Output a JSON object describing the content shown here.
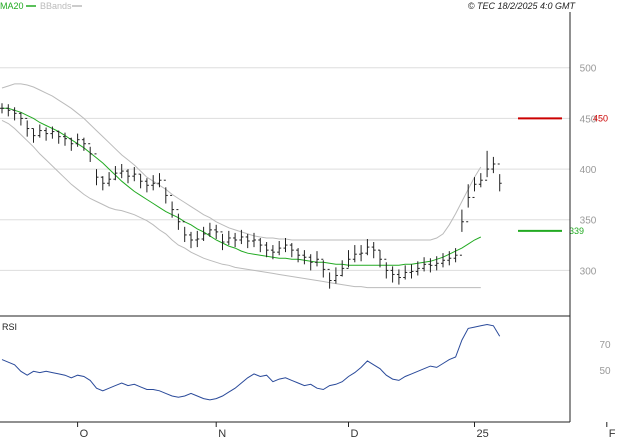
{
  "legend": {
    "ma_label": "MA20",
    "bbands_label": "BBands",
    "ma_color": "#22aa22",
    "bbands_color": "#bbbbbb"
  },
  "copyright": "© TEC 18/2/2025 4:0 GMT",
  "rsi_label": "RSI",
  "colors": {
    "resistance": "#cc0000",
    "support": "#22aa22",
    "bars": "#222222",
    "rsi": "#2a4a9a",
    "grid": "#dddddd"
  },
  "chart_data": [
    {
      "type": "ohlc",
      "title": "",
      "x_ticks": [
        "O",
        "N",
        "D",
        "25",
        "F"
      ],
      "x_tick_index": [
        12,
        34,
        55,
        75,
        96
      ],
      "y_ticks": [
        "300",
        "350",
        "400",
        "450",
        "500"
      ],
      "y_tick_values": [
        300,
        350,
        400,
        450,
        500
      ],
      "ylim": [
        255,
        555
      ],
      "grid": true,
      "series": [
        {
          "name": "MA20",
          "values": [
            460,
            460,
            458,
            456,
            453,
            450,
            446,
            443,
            440,
            437,
            433,
            429,
            425,
            421,
            416,
            411,
            406,
            400,
            394,
            388,
            383,
            378,
            374,
            370,
            366,
            362,
            358,
            355,
            352,
            348,
            345,
            341,
            338,
            334,
            330,
            327,
            324,
            322,
            319,
            317,
            316,
            315,
            314,
            313,
            312,
            312,
            311,
            311,
            310,
            309,
            308,
            308,
            307,
            306,
            306,
            305,
            305,
            305,
            305,
            305,
            305,
            305,
            305,
            305,
            306,
            306,
            307,
            308,
            309,
            311,
            313,
            316,
            319,
            322,
            326,
            330,
            333
          ]
        },
        {
          "name": "BBands",
          "upper": [
            480,
            482,
            484,
            484,
            483,
            481,
            478,
            475,
            472,
            468,
            464,
            460,
            455,
            450,
            444,
            438,
            432,
            426,
            420,
            414,
            409,
            404,
            398,
            392,
            388,
            384,
            380,
            375,
            371,
            367,
            363,
            359,
            355,
            352,
            348,
            345,
            342,
            340,
            338,
            336,
            334,
            333,
            332,
            332,
            331,
            331,
            330,
            330,
            330,
            330,
            330,
            330,
            330,
            330,
            330,
            330,
            330,
            330,
            330,
            330,
            330,
            330,
            330,
            330,
            330,
            330,
            330,
            330,
            330,
            332,
            336,
            345,
            356,
            368,
            380,
            392,
            402
          ],
          "lower": [
            448,
            445,
            440,
            434,
            428,
            422,
            415,
            409,
            403,
            397,
            391,
            385,
            380,
            375,
            371,
            368,
            365,
            362,
            360,
            359,
            357,
            355,
            352,
            349,
            345,
            340,
            336,
            330,
            325,
            322,
            318,
            315,
            312,
            310,
            308,
            306,
            305,
            303,
            302,
            301,
            300,
            299,
            298,
            297,
            296,
            295,
            294,
            293,
            292,
            291,
            290,
            289,
            288,
            287,
            286,
            285,
            284,
            284,
            283,
            283,
            283,
            283,
            283,
            283,
            283,
            283,
            283,
            283,
            283,
            283,
            283,
            283,
            283,
            283,
            283,
            283,
            283
          ]
        },
        {
          "name": "",
          "close": [
            460,
            458,
            455,
            450,
            440,
            433,
            438,
            435,
            437,
            432,
            430,
            425,
            429,
            425,
            415,
            392,
            386,
            390,
            396,
            398,
            393,
            395,
            388,
            384,
            386,
            389,
            374,
            360,
            348,
            335,
            330,
            331,
            336,
            340,
            338,
            328,
            332,
            330,
            333,
            329,
            330,
            325,
            320,
            318,
            322,
            325,
            320,
            315,
            313,
            308,
            311,
            301,
            290,
            295,
            302,
            311,
            316,
            317,
            323,
            320,
            311,
            300,
            296,
            293,
            298,
            299,
            302,
            306,
            305,
            307,
            310,
            312,
            315,
            348,
            372,
            385,
            389,
            400,
            405,
            386
          ],
          "high": [
            465,
            464,
            461,
            456,
            448,
            440,
            444,
            441,
            442,
            438,
            436,
            431,
            435,
            431,
            422,
            400,
            393,
            397,
            403,
            405,
            400,
            402,
            395,
            391,
            394,
            396,
            382,
            368,
            356,
            343,
            338,
            339,
            343,
            347,
            345,
            336,
            339,
            337,
            340,
            336,
            337,
            332,
            328,
            325,
            329,
            332,
            327,
            322,
            320,
            316,
            319,
            310,
            298,
            303,
            310,
            320,
            325,
            325,
            331,
            328,
            320,
            308,
            304,
            301,
            305,
            306,
            309,
            313,
            312,
            314,
            317,
            319,
            322,
            360,
            385,
            392,
            396,
            418,
            412,
            395
          ],
          "low": [
            455,
            452,
            448,
            443,
            432,
            426,
            431,
            428,
            430,
            425,
            423,
            418,
            422,
            418,
            407,
            384,
            379,
            383,
            389,
            391,
            386,
            388,
            381,
            377,
            379,
            382,
            366,
            352,
            340,
            328,
            322,
            323,
            329,
            333,
            331,
            320,
            325,
            323,
            326,
            322,
            323,
            318,
            313,
            311,
            315,
            318,
            313,
            308,
            306,
            300,
            304,
            293,
            282,
            287,
            294,
            303,
            308,
            309,
            315,
            312,
            303,
            292,
            288,
            286,
            291,
            292,
            295,
            299,
            298,
            300,
            303,
            305,
            308,
            338,
            362,
            378,
            382,
            392,
            396,
            378
          ]
        },
        {
          "name": "",
          "resistance": 450,
          "support": 339
        }
      ]
    },
    {
      "type": "line",
      "title": "RSI",
      "y_ticks": [
        "50",
        "70"
      ],
      "y_tick_values": [
        50,
        70
      ],
      "ylim": [
        10,
        90
      ],
      "series": [
        {
          "name": "",
          "values": [
            58,
            56,
            54,
            49,
            46,
            49,
            48,
            49,
            48,
            47,
            46,
            44,
            46,
            45,
            42,
            36,
            34,
            36,
            38,
            40,
            38,
            39,
            37,
            35,
            35,
            34,
            32,
            30,
            29,
            30,
            32,
            30,
            28,
            27,
            28,
            30,
            33,
            36,
            40,
            44,
            47,
            45,
            46,
            41,
            43,
            44,
            42,
            40,
            38,
            39,
            36,
            35,
            38,
            39,
            41,
            45,
            48,
            52,
            57,
            54,
            51,
            46,
            43,
            42,
            45,
            47,
            49,
            51,
            53,
            52,
            55,
            58,
            60,
            73,
            82,
            83,
            84,
            85,
            84,
            76
          ]
        }
      ]
    }
  ]
}
